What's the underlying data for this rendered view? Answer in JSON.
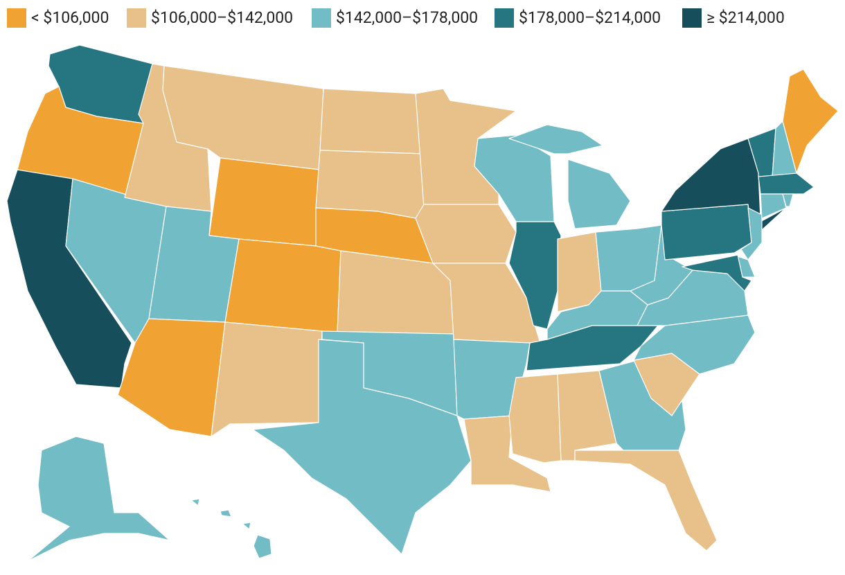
{
  "legend": [
    {
      "label": "< $106,000",
      "color": "#f0a232"
    },
    {
      "label": "$106,000–$142,000",
      "color": "#e8c18a"
    },
    {
      "label": "$142,000–$178,000",
      "color": "#72bcc6"
    },
    {
      "label": "$178,000–$214,000",
      "color": "#267682"
    },
    {
      "label": "≥ $214,000",
      "color": "#164e5b"
    }
  ],
  "region_classes": [
    3,
    0,
    4,
    2,
    1,
    1,
    0,
    2,
    0,
    0,
    1,
    1,
    1,
    0,
    1,
    2,
    2,
    1,
    1,
    1,
    2,
    1,
    2,
    3,
    2,
    2,
    1,
    2,
    2,
    3,
    1,
    1,
    2,
    1,
    1,
    2,
    2,
    2,
    3,
    4,
    4,
    2,
    2,
    3,
    3,
    2,
    3,
    2,
    2,
    0,
    2,
    2,
    2,
    2,
    2
  ]
}
